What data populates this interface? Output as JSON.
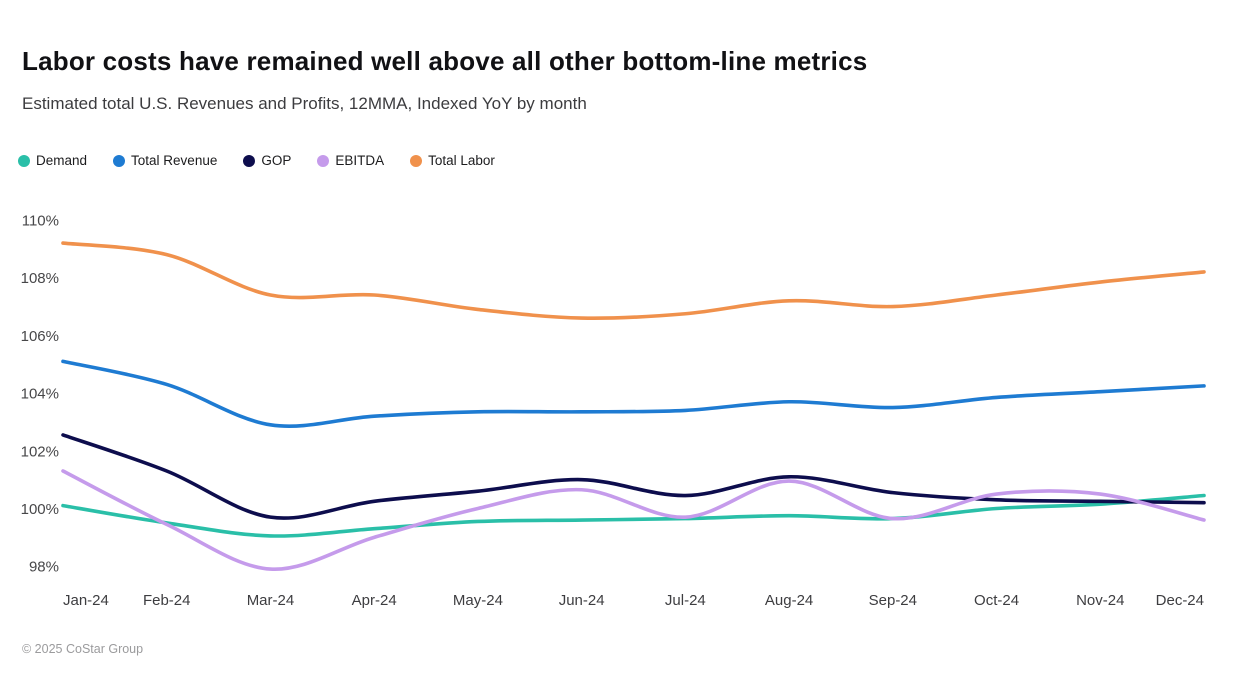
{
  "header": {
    "title": "Labor costs have remained well above all other bottom-line metrics",
    "subtitle": "Estimated total U.S. Revenues and Profits, 12MMA, Indexed YoY by month"
  },
  "footer": {
    "copyright": "© 2025 CoStar Group"
  },
  "chart_data": {
    "type": "line",
    "title": "Labor costs have remained well above all other bottom-line metrics",
    "subtitle": "Estimated total U.S. Revenues and Profits, 12MMA, Indexed YoY by month",
    "xlabel": "",
    "ylabel": "",
    "grid": false,
    "legend_position": "top-left",
    "ylim": [
      98,
      110
    ],
    "x": [
      "Jan-24",
      "Feb-24",
      "Mar-24",
      "Apr-24",
      "May-24",
      "Jun-24",
      "Jul-24",
      "Aug-24",
      "Sep-24",
      "Oct-24",
      "Nov-24",
      "Dec-24"
    ],
    "y_ticks": [
      {
        "value": 98,
        "label": "98%"
      },
      {
        "value": 100,
        "label": "100%"
      },
      {
        "value": 102,
        "label": "102%"
      },
      {
        "value": 104,
        "label": "104%"
      },
      {
        "value": 106,
        "label": "106%"
      },
      {
        "value": 108,
        "label": "108%"
      },
      {
        "value": 110,
        "label": "110%"
      }
    ],
    "series": [
      {
        "name": "Demand",
        "color": "#2ABFA8",
        "values": [
          100.1,
          99.5,
          99.05,
          99.3,
          99.55,
          99.6,
          99.65,
          99.75,
          99.65,
          100.0,
          100.15,
          100.45
        ]
      },
      {
        "name": "Total Revenue",
        "color": "#1E7BD2",
        "values": [
          105.1,
          104.3,
          102.9,
          103.2,
          103.35,
          103.35,
          103.4,
          103.7,
          103.5,
          103.85,
          104.05,
          104.25
        ]
      },
      {
        "name": "GOP",
        "color": "#0D0D4D",
        "values": [
          102.55,
          101.3,
          99.7,
          100.25,
          100.6,
          101.0,
          100.45,
          101.1,
          100.55,
          100.3,
          100.25,
          100.2
        ]
      },
      {
        "name": "EBITDA",
        "color": "#C59BEB",
        "values": [
          101.3,
          99.45,
          97.9,
          99.0,
          100.0,
          100.65,
          99.7,
          100.95,
          99.65,
          100.5,
          100.5,
          99.6
        ]
      },
      {
        "name": "Total Labor",
        "color": "#F0914C",
        "values": [
          109.2,
          108.8,
          107.4,
          107.4,
          106.9,
          106.6,
          106.75,
          107.2,
          107.0,
          107.4,
          107.85,
          108.2
        ]
      }
    ]
  }
}
